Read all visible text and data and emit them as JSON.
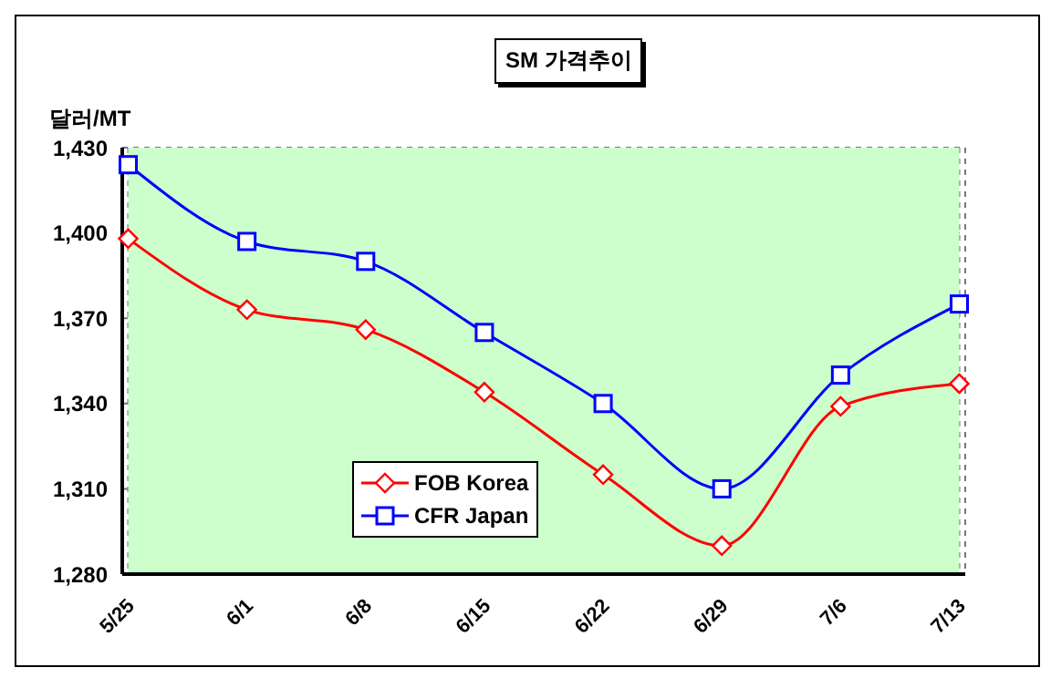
{
  "chart_data": {
    "type": "line",
    "title": "SM 가격추이",
    "ylabel": "달러/MT",
    "categories": [
      "5/25",
      "6/1",
      "6/8",
      "6/15",
      "6/22",
      "6/29",
      "7/6",
      "7/13"
    ],
    "series": [
      {
        "name": "FOB Korea",
        "color": "#ff0000",
        "marker": "diamond",
        "values": [
          1398,
          1373,
          1366,
          1344,
          1315,
          1290,
          1339,
          1347
        ]
      },
      {
        "name": "CFR Japan",
        "color": "#0000ff",
        "marker": "square",
        "values": [
          1424,
          1397,
          1390,
          1365,
          1340,
          1310,
          1350,
          1375
        ]
      }
    ],
    "ylim": [
      1280,
      1430
    ],
    "yticks": [
      {
        "value": 1280,
        "label": "1,280"
      },
      {
        "value": 1310,
        "label": "1,310"
      },
      {
        "value": 1340,
        "label": "1,340"
      },
      {
        "value": 1370,
        "label": "1,370"
      },
      {
        "value": 1400,
        "label": "1,400"
      },
      {
        "value": 1430,
        "label": "1,430"
      }
    ],
    "grid": true,
    "legend": "bottom left",
    "line_style": "solid"
  }
}
